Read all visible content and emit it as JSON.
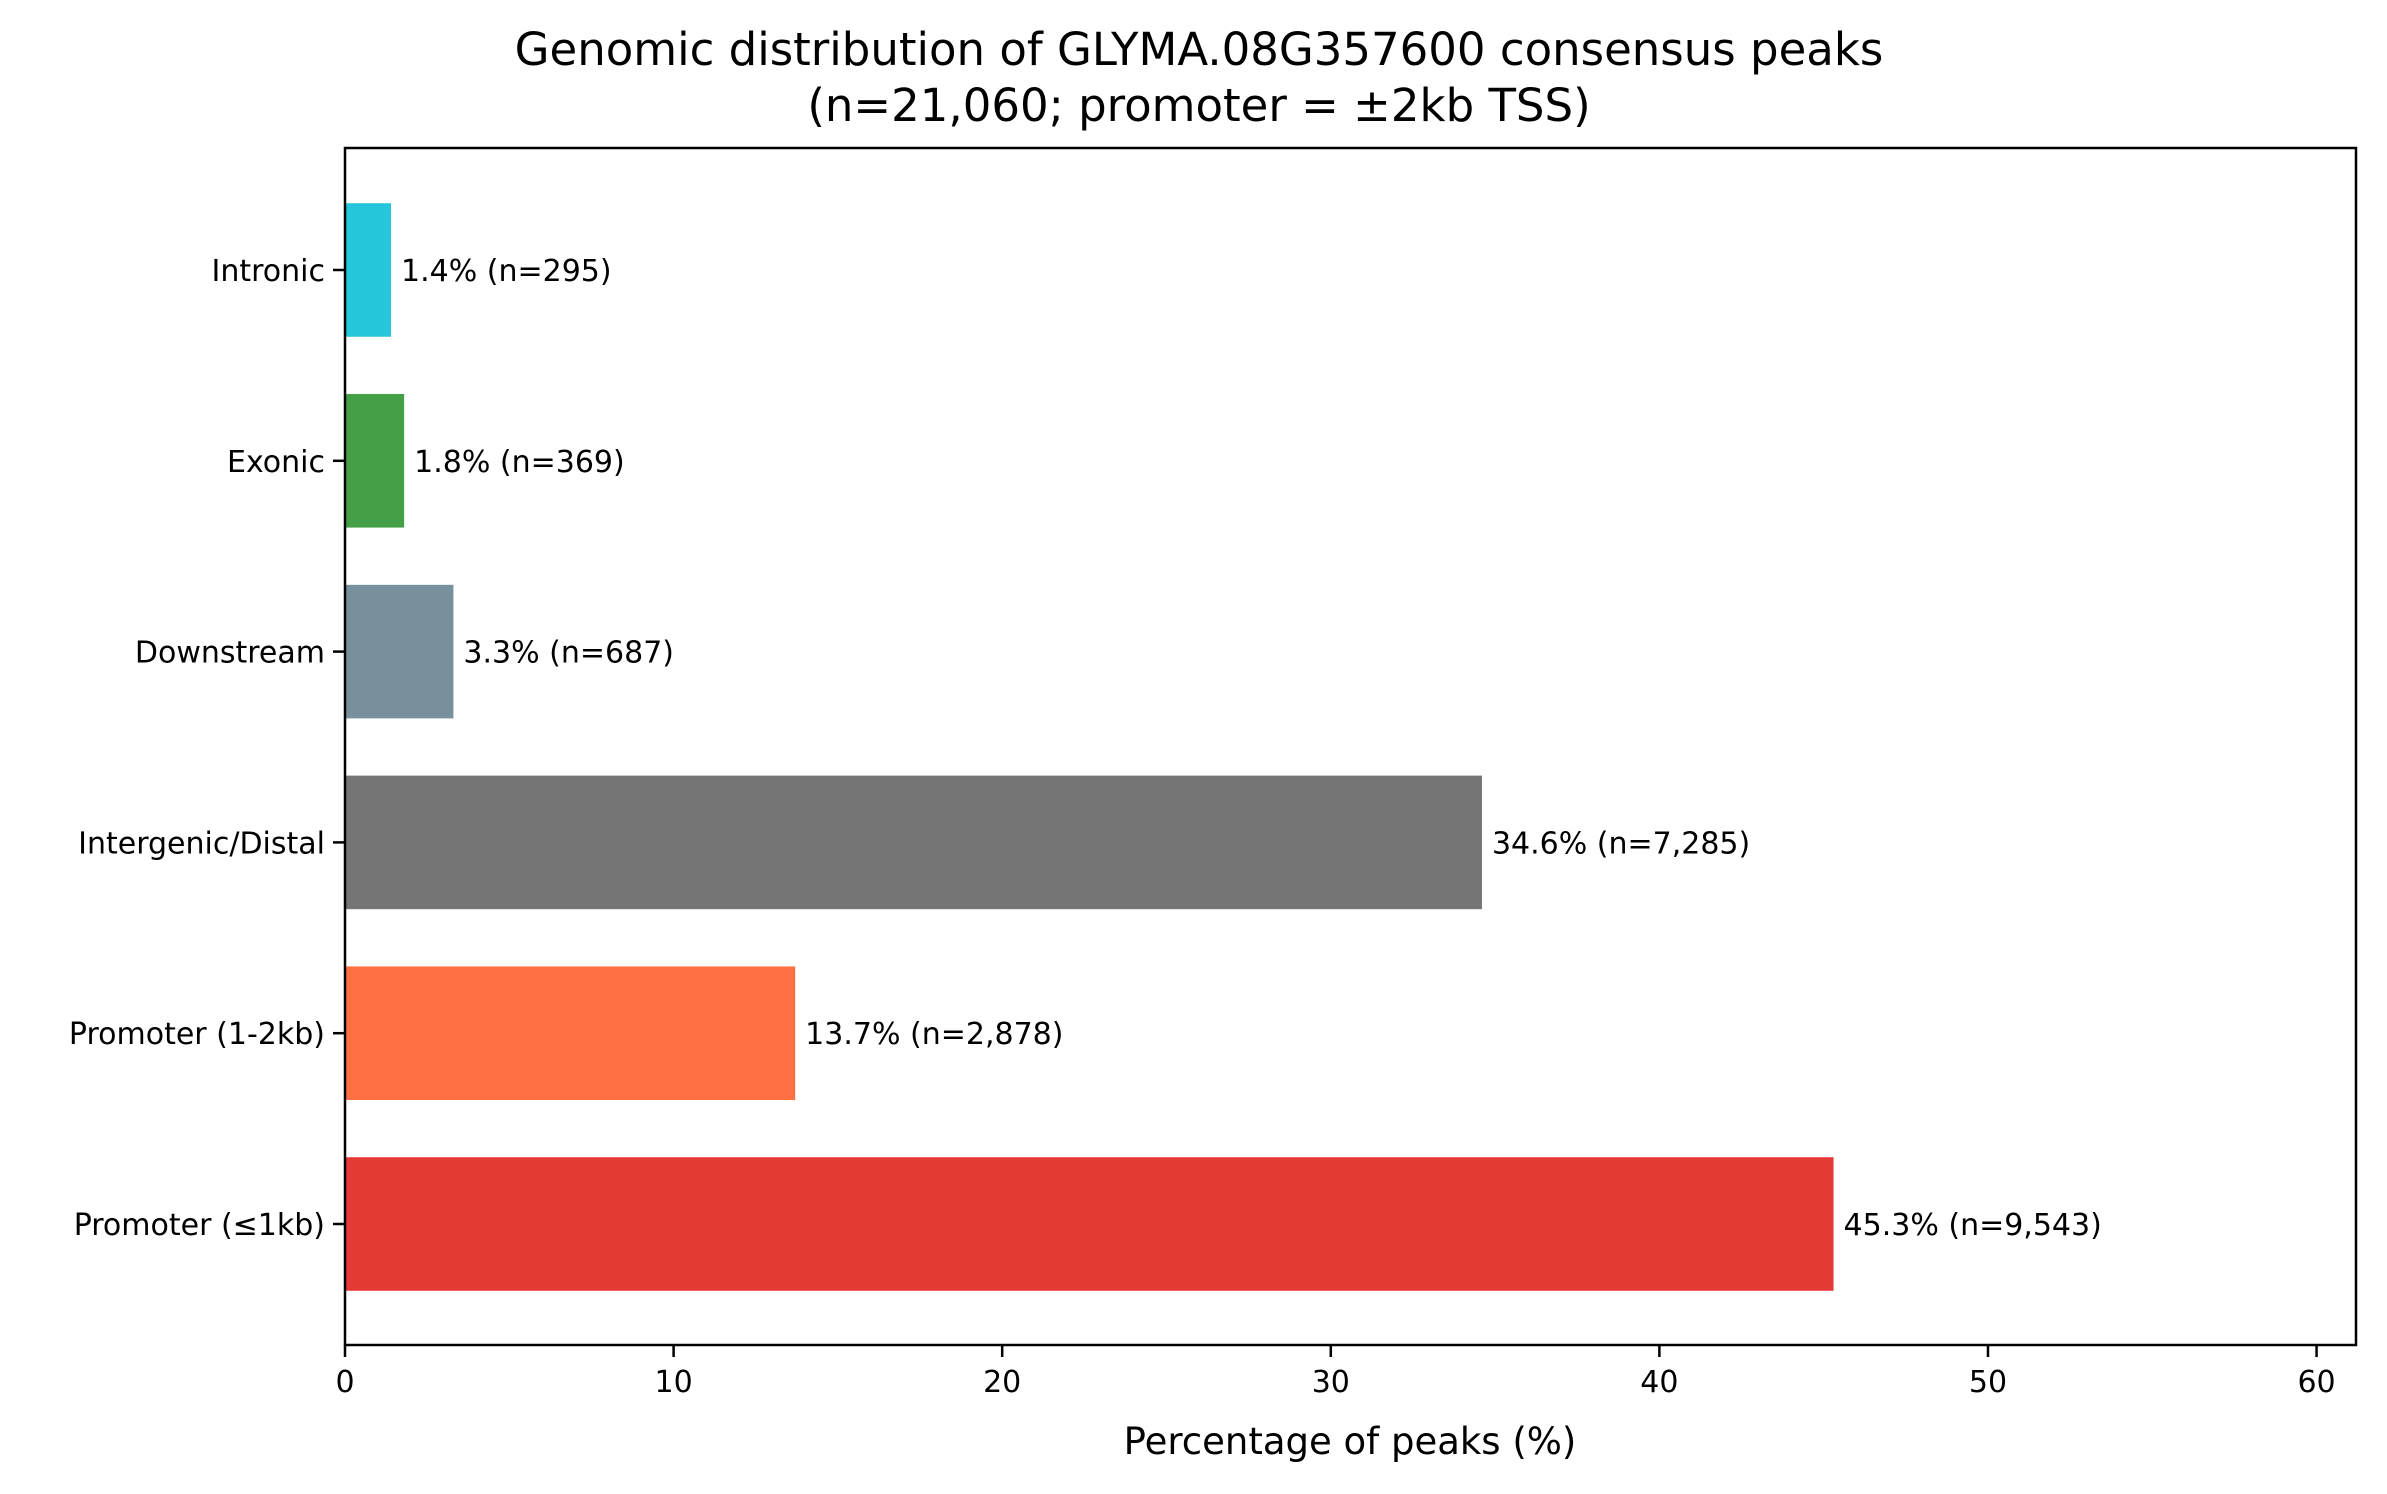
{
  "chart_data": {
    "type": "bar",
    "orientation": "horizontal",
    "title": "Genomic distribution of GLYMA.08G357600 consensus peaks",
    "subtitle": "(n=21,060; promoter = ±2kb TSS)",
    "xlabel": "Percentage of peaks (%)",
    "ylabel": "",
    "xlim": [
      0,
      61.2
    ],
    "xticks": [
      "0",
      "10",
      "20",
      "30",
      "40",
      "50",
      "60"
    ],
    "grid": false,
    "categories": [
      "Promoter (≤1kb)",
      "Promoter (1-2kb)",
      "Intergenic/Distal",
      "Downstream",
      "Exonic",
      "Intronic"
    ],
    "values": [
      45.3,
      13.7,
      34.6,
      3.3,
      1.8,
      1.4
    ],
    "counts": [
      "9,543",
      "2,878",
      "7,285",
      "687",
      "369",
      "295"
    ],
    "data_labels": [
      "45.3% (n=9,543)",
      "13.7% (n=2,878)",
      "34.6% (n=7,285)",
      "3.3% (n=687)",
      "1.8% (n=369)",
      "1.4% (n=295)"
    ],
    "colors": [
      "#e53935",
      "#ff7043",
      "#757575",
      "#78909c",
      "#43a047",
      "#26c6da"
    ]
  }
}
